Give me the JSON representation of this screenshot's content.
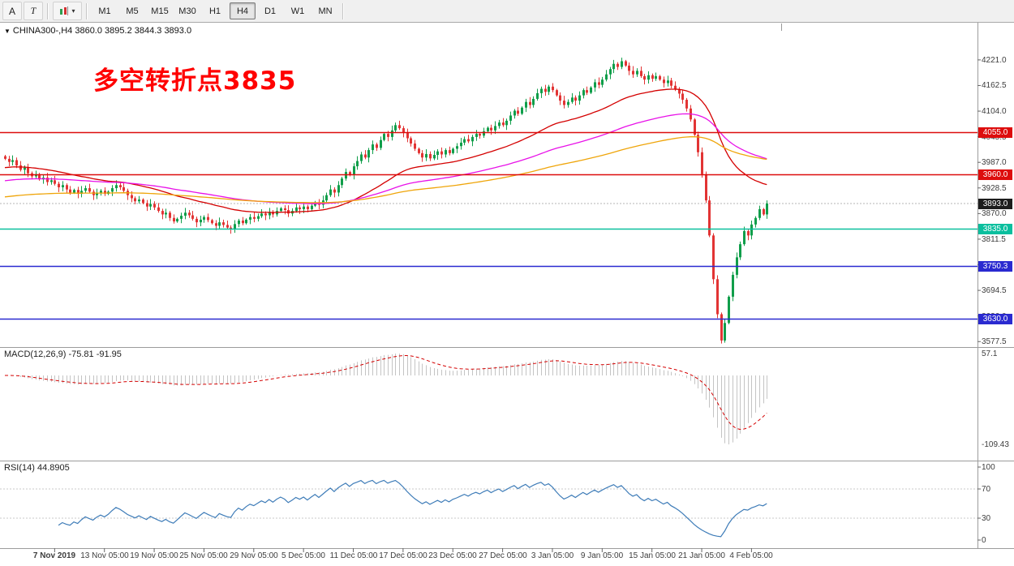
{
  "toolbar": {
    "tool_a": "A",
    "tool_t": "T",
    "timeframes": [
      "M1",
      "M5",
      "M15",
      "M30",
      "H1",
      "H4",
      "D1",
      "W1",
      "MN"
    ],
    "active_timeframe": "H4"
  },
  "icons": {
    "dropdown_caret": "▾",
    "symbol_marker": "▼"
  },
  "symbol_line": "CHINA300-,H4 3860.0 3895.2 3844.3 3893.0",
  "annotation": {
    "text": "多空转折点3835",
    "color": "#ff0000"
  },
  "current_price": {
    "value": 3893.0,
    "label": "3893.0",
    "color": "#1d1d1d"
  },
  "colors": {
    "up": "#109e4a",
    "down": "#e23434",
    "ma_fast": "#d40000",
    "ma_mid": "#e812e8",
    "ma_slow": "#efa50a",
    "macd_hist": "#c4c4c4",
    "macd_signal": "#d40000",
    "rsi": "#3e7cb8"
  },
  "chart_data": {
    "type": "candlestick",
    "symbol": "CHINA300-",
    "timeframe": "H4",
    "ohlc_current": {
      "open": 3860.0,
      "high": 3895.2,
      "low": 3844.3,
      "close": 3893.0
    },
    "price_range": [
      3565,
      4306
    ],
    "y_ticks": [
      4221.0,
      4162.5,
      4104.0,
      4045.5,
      3987.0,
      3928.5,
      3870.0,
      3811.5,
      3753.0,
      3694.5,
      3636.0,
      3577.5
    ],
    "x_tick_labels": [
      {
        "i": 13,
        "t": "7 Nov 2019"
      },
      {
        "i": 26,
        "t": "13 Nov 05:00"
      },
      {
        "i": 39,
        "t": "19 Nov 05:00"
      },
      {
        "i": 52,
        "t": "25 Nov 05:00"
      },
      {
        "i": 65,
        "t": "29 Nov 05:00"
      },
      {
        "i": 78,
        "t": "5 Dec 05:00"
      },
      {
        "i": 91,
        "t": "11 Dec 05:00"
      },
      {
        "i": 104,
        "t": "17 Dec 05:00"
      },
      {
        "i": 117,
        "t": "23 Dec 05:00"
      },
      {
        "i": 130,
        "t": "27 Dec 05:00"
      },
      {
        "i": 143,
        "t": "3 Jan 05:00"
      },
      {
        "i": 156,
        "t": "9 Jan 05:00"
      },
      {
        "i": 169,
        "t": "15 Jan 05:00"
      },
      {
        "i": 182,
        "t": "21 Jan 05:00"
      },
      {
        "i": 195,
        "t": "4 Feb 05:00"
      }
    ],
    "levels": [
      {
        "price": 4055.0,
        "label": "4055.0",
        "color": "#dd0d0d"
      },
      {
        "price": 3960.0,
        "label": "3960.0",
        "color": "#dd0d0d"
      },
      {
        "price": 3835.0,
        "label": "3835.0",
        "color": "#0abf9e"
      },
      {
        "price": 3750.3,
        "label": "3750.3",
        "color": "#2a2ad0"
      },
      {
        "price": 3630.0,
        "label": "3630.0",
        "color": "#2a2ad0"
      }
    ],
    "closes": [
      3995,
      3988,
      3992,
      3980,
      3970,
      3975,
      3962,
      3955,
      3960,
      3948,
      3952,
      3942,
      3946,
      3938,
      3930,
      3935,
      3925,
      3918,
      3924,
      3915,
      3922,
      3928,
      3920,
      3912,
      3918,
      3922,
      3915,
      3920,
      3928,
      3935,
      3930,
      3922,
      3912,
      3905,
      3898,
      3902,
      3894,
      3886,
      3892,
      3884,
      3876,
      3868,
      3872,
      3860,
      3852,
      3858,
      3865,
      3872,
      3866,
      3858,
      3850,
      3856,
      3862,
      3855,
      3848,
      3842,
      3850,
      3844,
      3838,
      3835,
      3846,
      3854,
      3848,
      3856,
      3862,
      3858,
      3864,
      3870,
      3866,
      3874,
      3868,
      3876,
      3882,
      3878,
      3870,
      3876,
      3884,
      3880,
      3886,
      3880,
      3888,
      3896,
      3890,
      3900,
      3912,
      3925,
      3918,
      3935,
      3950,
      3965,
      3958,
      3978,
      3990,
      4005,
      3998,
      4015,
      4028,
      4020,
      4038,
      4052,
      4045,
      4060,
      4072,
      4065,
      4055,
      4042,
      4030,
      4018,
      4008,
      3998,
      4006,
      3996,
      4004,
      4012,
      4005,
      4015,
      4008,
      4018,
      4024,
      4032,
      4040,
      4035,
      4045,
      4052,
      4048,
      4058,
      4066,
      4060,
      4070,
      4078,
      4072,
      4082,
      4094,
      4105,
      4098,
      4112,
      4125,
      4118,
      4132,
      4145,
      4155,
      4148,
      4160,
      4152,
      4140,
      4128,
      4118,
      4125,
      4135,
      4128,
      4140,
      4152,
      4146,
      4158,
      4170,
      4164,
      4176,
      4188,
      4200,
      4212,
      4205,
      4218,
      4208,
      4196,
      4188,
      4196,
      4184,
      4176,
      4186,
      4178,
      4184,
      4176,
      4168,
      4174,
      4162,
      4154,
      4144,
      4130,
      4110,
      4085,
      4050,
      4010,
      3960,
      3900,
      3820,
      3720,
      3640,
      3580,
      3620,
      3680,
      3730,
      3770,
      3800,
      3830,
      3820,
      3845,
      3860,
      3880,
      3868,
      3893
    ],
    "indicators": [
      {
        "name": "MACD",
        "params": "12,26,9",
        "title": "MACD(12,26,9) -75.81 -91.95",
        "axis_labels": [
          "57.1",
          "-109.43"
        ]
      },
      {
        "name": "RSI",
        "params": "14",
        "title": "RSI(14) 44.8905",
        "axis_labels": [
          "100",
          "70",
          "30",
          "0"
        ],
        "guides": [
          70,
          30
        ]
      }
    ]
  }
}
